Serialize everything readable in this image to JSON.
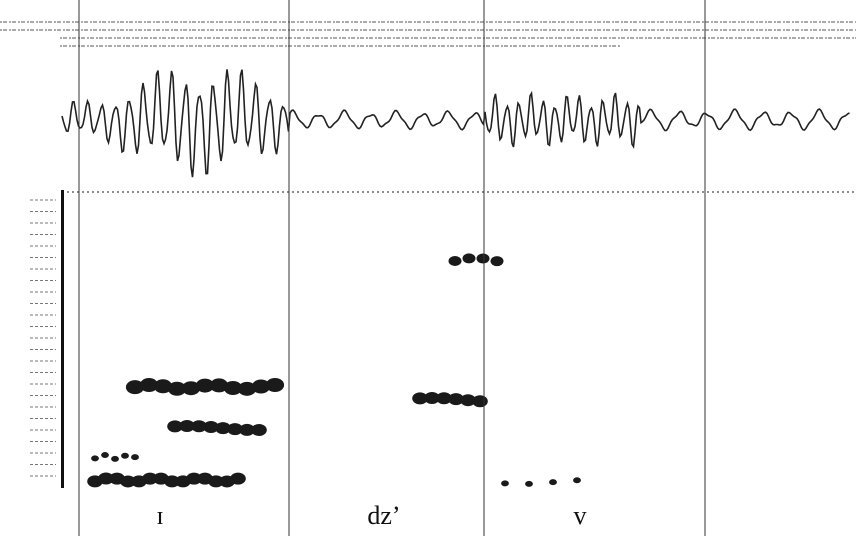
{
  "segments": [
    {
      "label": "ɪ"
    },
    {
      "label": "dz’"
    },
    {
      "label": "v"
    }
  ]
}
